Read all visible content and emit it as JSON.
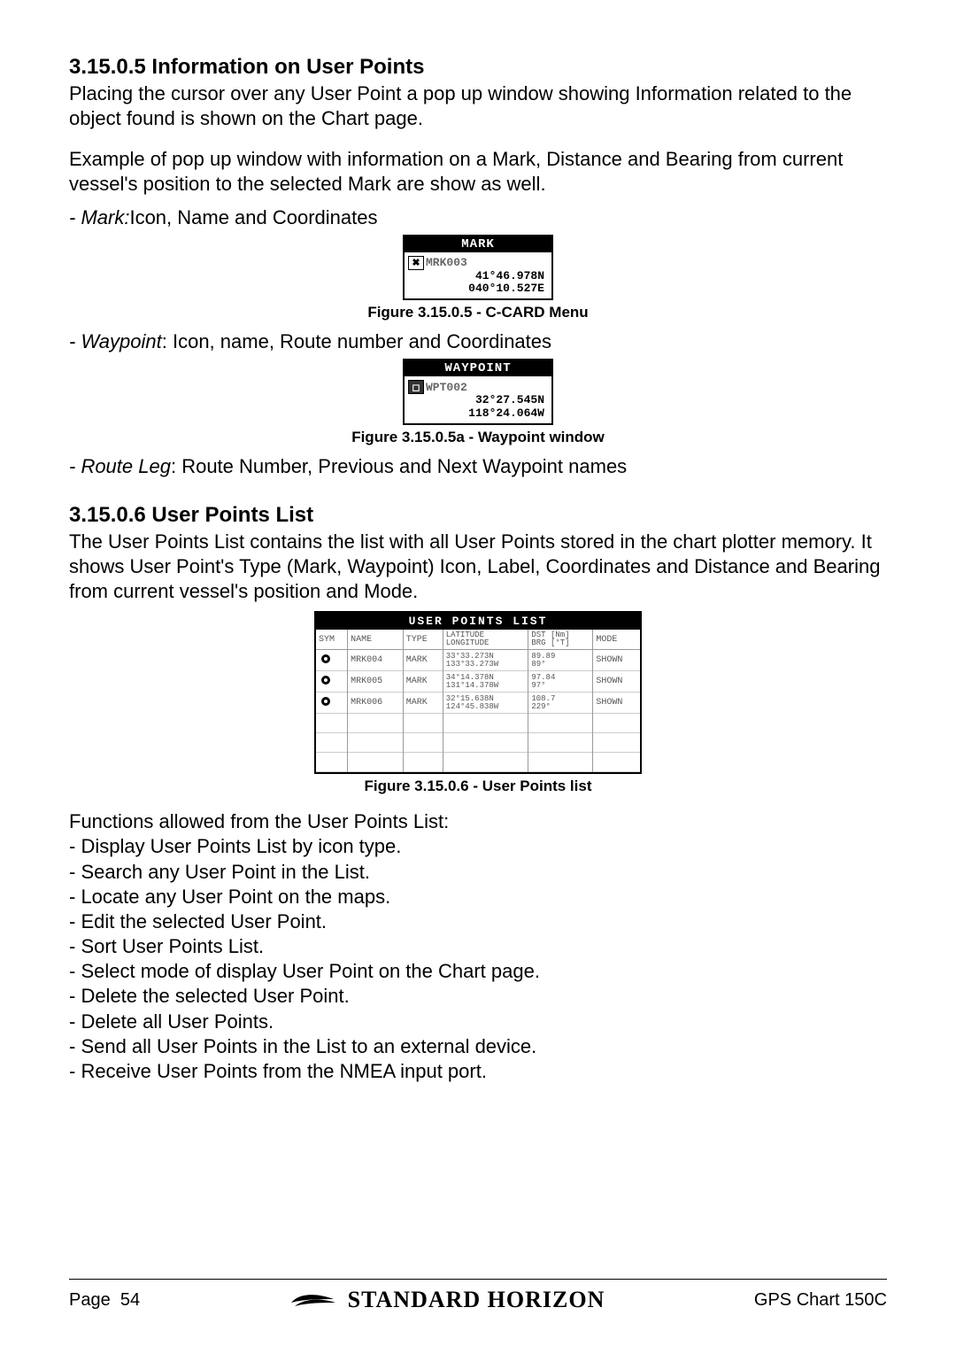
{
  "colors": {
    "text": "#000000",
    "muted": "#666666",
    "border": "#999999",
    "background": "#ffffff",
    "inverse_bg": "#000000",
    "inverse_text": "#ffffff"
  },
  "typography": {
    "heading_size_pt": 18,
    "body_size_pt": 16,
    "caption_size_pt": 12,
    "mono_family": "Courier New"
  },
  "sec1": {
    "heading_num": "3.15.0.5",
    "heading_title": "Information on User Points",
    "para1": "Placing the cursor over any User Point a pop up window showing Information related to the object found is shown on the Chart page.",
    "para2": "Example of pop up window with information on a Mark, Distance and Bearing from current vessel's position to the selected Mark are show as well.",
    "bullet_mark_term": "- Mark:",
    "bullet_mark_desc": "Icon, Name and Coordinates",
    "fig1_caption": "Figure 3.15.0.5 - C-CARD Menu",
    "bullet_wp_term": "- Waypoint",
    "bullet_wp_desc": ":    Icon, name, Route number and Coordinates",
    "fig2_caption": "Figure 3.15.0.5a - Waypoint window",
    "bullet_rl_term": "- Route Leg",
    "bullet_rl_desc": ":  Route Number, Previous and Next Waypoint names"
  },
  "popup_mark": {
    "title": "MARK",
    "name": "MRK003",
    "coord1": "41°46.978N",
    "coord2": "040°10.527E"
  },
  "popup_wp": {
    "title": "WAYPOINT",
    "name": "WPT002",
    "coord1": "32°27.545N",
    "coord2": "118°24.064W"
  },
  "sec2": {
    "heading_num": "3.15.0.6",
    "heading_title": "User Points List",
    "para1": "The User Points List contains the list with all User Points stored in the chart plotter memory. It shows User Point's Type (Mark, Waypoint) Icon, Label, Coordinates and Distance and Bearing from current vessel's position and Mode.",
    "fig_caption": "Figure 3.15.0.6 - User Points list",
    "func_intro": "Functions allowed from the User Points List:",
    "func_items": [
      "- Display User Points List by icon type.",
      "- Search any User Point in the List.",
      "- Locate any User Point on the maps.",
      "- Edit the selected User Point.",
      "- Sort User Points List.",
      "- Select mode of display User Point on the Chart page.",
      "- Delete the selected User Point.",
      "- Delete all User Points.",
      "- Send all User Points in the List to an external device.",
      "- Receive User Points from the NMEA input port."
    ]
  },
  "upl": {
    "title": "USER POINTS LIST",
    "headers": {
      "sym": "SYM",
      "name": "NAME",
      "type": "TYPE",
      "latlon_l1": "LATITUDE",
      "latlon_l2": "LONGITUDE",
      "dstbr_l1": "DST [Nm]",
      "dstbr_l2": "BRG [°T]",
      "mode": "MODE"
    },
    "rows": [
      {
        "name": "MRK004",
        "type": "MARK",
        "lat": "33°33.273N",
        "lon": "133°33.273W",
        "dst": "89.89",
        "brg": "89°",
        "mode": "SHOWN"
      },
      {
        "name": "MRK005",
        "type": "MARK",
        "lat": "34°14.378N",
        "lon": "131°14.378W",
        "dst": "97.84",
        "brg": "97°",
        "mode": "SHOWN"
      },
      {
        "name": "MRK006",
        "type": "MARK",
        "lat": "32°15.638N",
        "lon": "124°45.838W",
        "dst": "108.7",
        "brg": "229°",
        "mode": "SHOWN"
      }
    ],
    "empty_rows": 3
  },
  "footer": {
    "page_label": "Page",
    "page_num": "54",
    "brand": "STANDARD HORIZON",
    "model": "GPS Chart 150C"
  }
}
